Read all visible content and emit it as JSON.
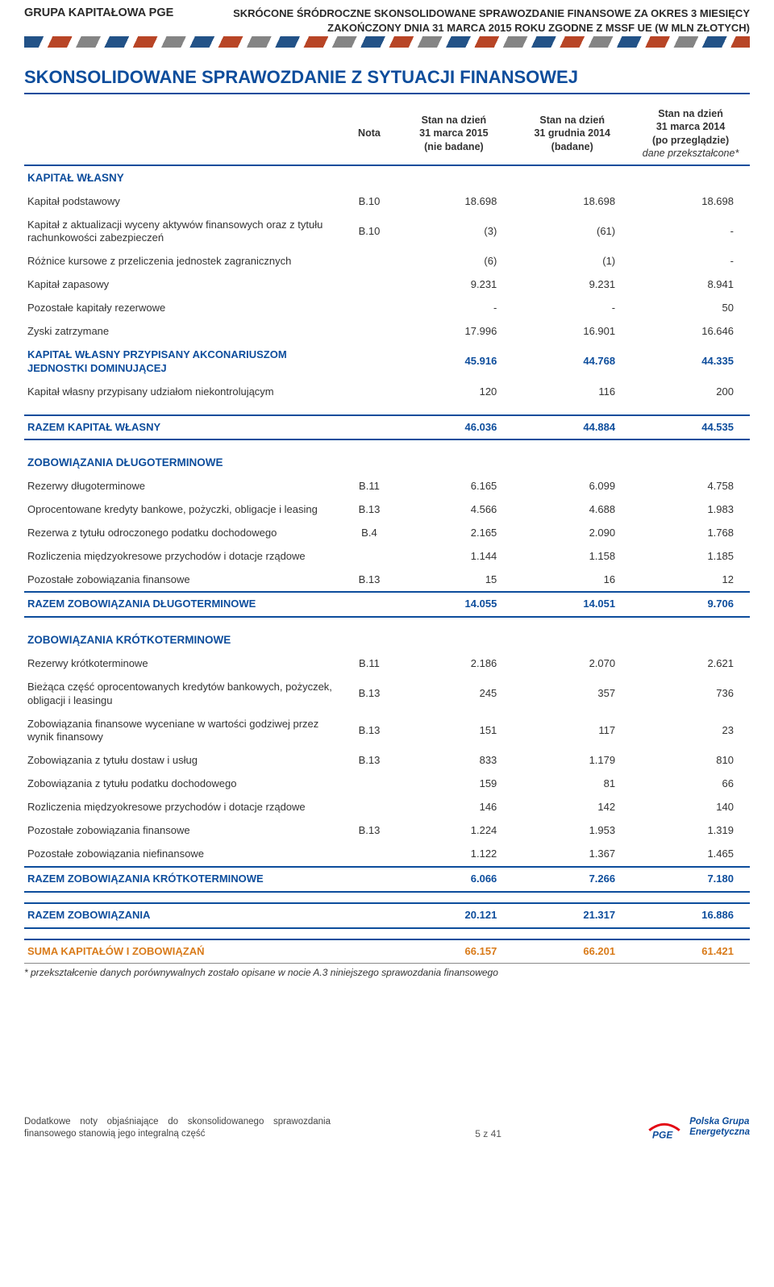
{
  "header": {
    "group_name": "GRUPA KAPITAŁOWA PGE",
    "report_line1": "SKRÓCONE ŚRÓDROCZNE SKONSOLIDOWANE SPRAWOZDANIE FINANSOWE ZA OKRES 3 MIESIĘCY",
    "report_line2": "ZAKOŃCZONY DNIA 31 MARCA 2015 ROKU ZGODNE Z MSSF UE (W MLN ZŁOTYCH)"
  },
  "title": "SKONSOLIDOWANE SPRAWOZDANIE Z SYTUACJI FINANSOWEJ",
  "col_headers": {
    "nota": "Nota",
    "c1_l1": "Stan na dzień",
    "c1_l2": "31 marca 2015",
    "c1_l3": "(nie badane)",
    "c2_l1": "Stan na dzień",
    "c2_l2": "31 grudnia 2014",
    "c2_l3": "(badane)",
    "c3_l1": "Stan na dzień",
    "c3_l2": "31 marca 2014",
    "c3_l3": "(po przeglądzie)",
    "c3_l4": "dane przekształcone*"
  },
  "sections": {
    "equity_head": "KAPITAŁ WŁASNY",
    "equity": [
      {
        "label": "Kapitał podstawowy",
        "nota": "B.10",
        "v1": "18.698",
        "v2": "18.698",
        "v3": "18.698"
      },
      {
        "label": "Kapitał z aktualizacji wyceny aktywów finansowych oraz z tytułu rachunkowości zabezpieczeń",
        "nota": "B.10",
        "v1": "(3)",
        "v2": "(61)",
        "v3": "-"
      },
      {
        "label": "Różnice kursowe z przeliczenia jednostek zagranicznych",
        "nota": "",
        "v1": "(6)",
        "v2": "(1)",
        "v3": "-"
      },
      {
        "label": "Kapitał zapasowy",
        "nota": "",
        "v1": "9.231",
        "v2": "9.231",
        "v3": "8.941"
      },
      {
        "label": "Pozostałe kapitały rezerwowe",
        "nota": "",
        "v1": "-",
        "v2": "-",
        "v3": "50"
      },
      {
        "label": "Zyski zatrzymane",
        "nota": "",
        "v1": "17.996",
        "v2": "16.901",
        "v3": "16.646"
      }
    ],
    "equity_parent": {
      "label": "KAPITAŁ WŁASNY PRZYPISANY AKCONARIUSZOM JEDNOSTKI DOMINUJĄCEJ",
      "v1": "45.916",
      "v2": "44.768",
      "v3": "44.335"
    },
    "equity_nci": {
      "label": "Kapitał własny przypisany udziałom niekontrolującym",
      "v1": "120",
      "v2": "116",
      "v3": "200"
    },
    "equity_total": {
      "label": "RAZEM KAPITAŁ WŁASNY",
      "v1": "46.036",
      "v2": "44.884",
      "v3": "44.535"
    },
    "lt_head": "ZOBOWIĄZANIA DŁUGOTERMINOWE",
    "lt": [
      {
        "label": "Rezerwy długoterminowe",
        "nota": "B.11",
        "v1": "6.165",
        "v2": "6.099",
        "v3": "4.758"
      },
      {
        "label": "Oprocentowane kredyty bankowe, pożyczki, obligacje i leasing",
        "nota": "B.13",
        "v1": "4.566",
        "v2": "4.688",
        "v3": "1.983"
      },
      {
        "label": "Rezerwa z tytułu odroczonego podatku dochodowego",
        "nota": "B.4",
        "v1": "2.165",
        "v2": "2.090",
        "v3": "1.768"
      },
      {
        "label": "Rozliczenia międzyokresowe przychodów i dotacje rządowe",
        "nota": "",
        "v1": "1.144",
        "v2": "1.158",
        "v3": "1.185"
      },
      {
        "label": "Pozostałe zobowiązania finansowe",
        "nota": "B.13",
        "v1": "15",
        "v2": "16",
        "v3": "12"
      }
    ],
    "lt_total": {
      "label": "RAZEM ZOBOWIĄZANIA DŁUGOTERMINOWE",
      "v1": "14.055",
      "v2": "14.051",
      "v3": "9.706"
    },
    "st_head": "ZOBOWIĄZANIA KRÓTKOTERMINOWE",
    "st": [
      {
        "label": "Rezerwy krótkoterminowe",
        "nota": "B.11",
        "v1": "2.186",
        "v2": "2.070",
        "v3": "2.621"
      },
      {
        "label": "Bieżąca część oprocentowanych kredytów bankowych, pożyczek, obligacji i leasingu",
        "nota": "B.13",
        "v1": "245",
        "v2": "357",
        "v3": "736"
      },
      {
        "label": "Zobowiązania finansowe wyceniane w wartości godziwej przez wynik finansowy",
        "nota": "B.13",
        "v1": "151",
        "v2": "117",
        "v3": "23"
      },
      {
        "label": "Zobowiązania z tytułu dostaw i usług",
        "nota": "B.13",
        "v1": "833",
        "v2": "1.179",
        "v3": "810"
      },
      {
        "label": "Zobowiązania z tytułu podatku dochodowego",
        "nota": "",
        "v1": "159",
        "v2": "81",
        "v3": "66"
      },
      {
        "label": "Rozliczenia międzyokresowe przychodów i dotacje rządowe",
        "nota": "",
        "v1": "146",
        "v2": "142",
        "v3": "140"
      },
      {
        "label": "Pozostałe zobowiązania finansowe",
        "nota": "B.13",
        "v1": "1.224",
        "v2": "1.953",
        "v3": "1.319"
      },
      {
        "label": "Pozostałe zobowiązania niefinansowe",
        "nota": "",
        "v1": "1.122",
        "v2": "1.367",
        "v3": "1.465"
      }
    ],
    "st_total": {
      "label": "RAZEM ZOBOWIĄZANIA KRÓTKOTERMINOWE",
      "v1": "6.066",
      "v2": "7.266",
      "v3": "7.180"
    },
    "liab_total": {
      "label": "RAZEM ZOBOWIĄZANIA",
      "v1": "20.121",
      "v2": "21.317",
      "v3": "16.886"
    },
    "grand_total": {
      "label": "SUMA KAPITAŁÓW I ZOBOWIĄZAŃ",
      "v1": "66.157",
      "v2": "66.201",
      "v3": "61.421"
    }
  },
  "footnote": "* przekształcenie danych porównywalnych zostało opisane w nocie A.3 niniejszego sprawozdania finansowego",
  "footer": {
    "note": "Dodatkowe noty objaśniające do skonsolidowanego sprawozdania finansowego stanowią jego integralną część",
    "page": "5 z 41",
    "brand1": "PGE",
    "brand2_l1": "Polska Grupa",
    "brand2_l2": "Energetyczna"
  },
  "colors": {
    "blue": "#0d4d9c",
    "orange": "#d97b1a",
    "text": "#333333"
  }
}
